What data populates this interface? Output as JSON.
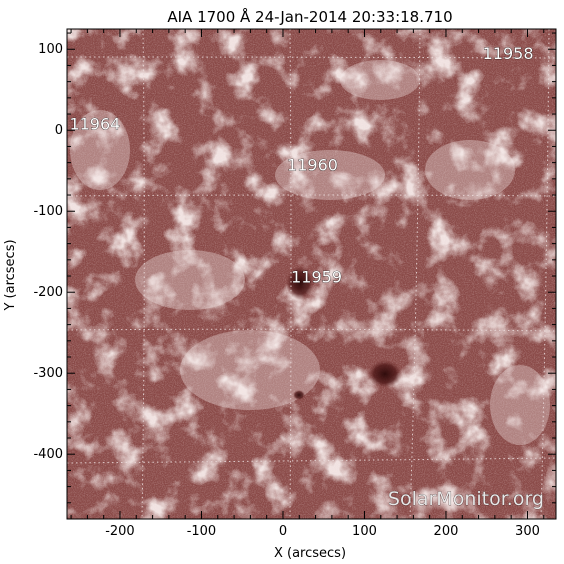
{
  "title": "AIA 1700 Å 24-Jan-2014 20:33:18.710",
  "watermark": "SolarMonitor.org",
  "axes": {
    "xlabel": "X (arcsecs)",
    "ylabel": "Y (arcsecs)",
    "xlim": [
      -265,
      335
    ],
    "ylim": [
      -480,
      125
    ],
    "xticks": [
      "-200",
      "-100",
      "0",
      "100",
      "200",
      "300"
    ],
    "yticks": [
      "100",
      "0",
      "-100",
      "-200",
      "-300",
      "-400"
    ]
  },
  "regions": [
    {
      "label": "11958",
      "x": 245,
      "y": 88
    },
    {
      "label": "11964",
      "x": -262,
      "y": 1
    },
    {
      "label": "11960",
      "x": 5,
      "y": -50
    },
    {
      "label": "11959",
      "x": 10,
      "y": -188
    }
  ],
  "colors": {
    "base": "#8a4a48",
    "bright": "#f3e4e2",
    "dark": "#3a1010",
    "grid": "#e8d8d8"
  }
}
